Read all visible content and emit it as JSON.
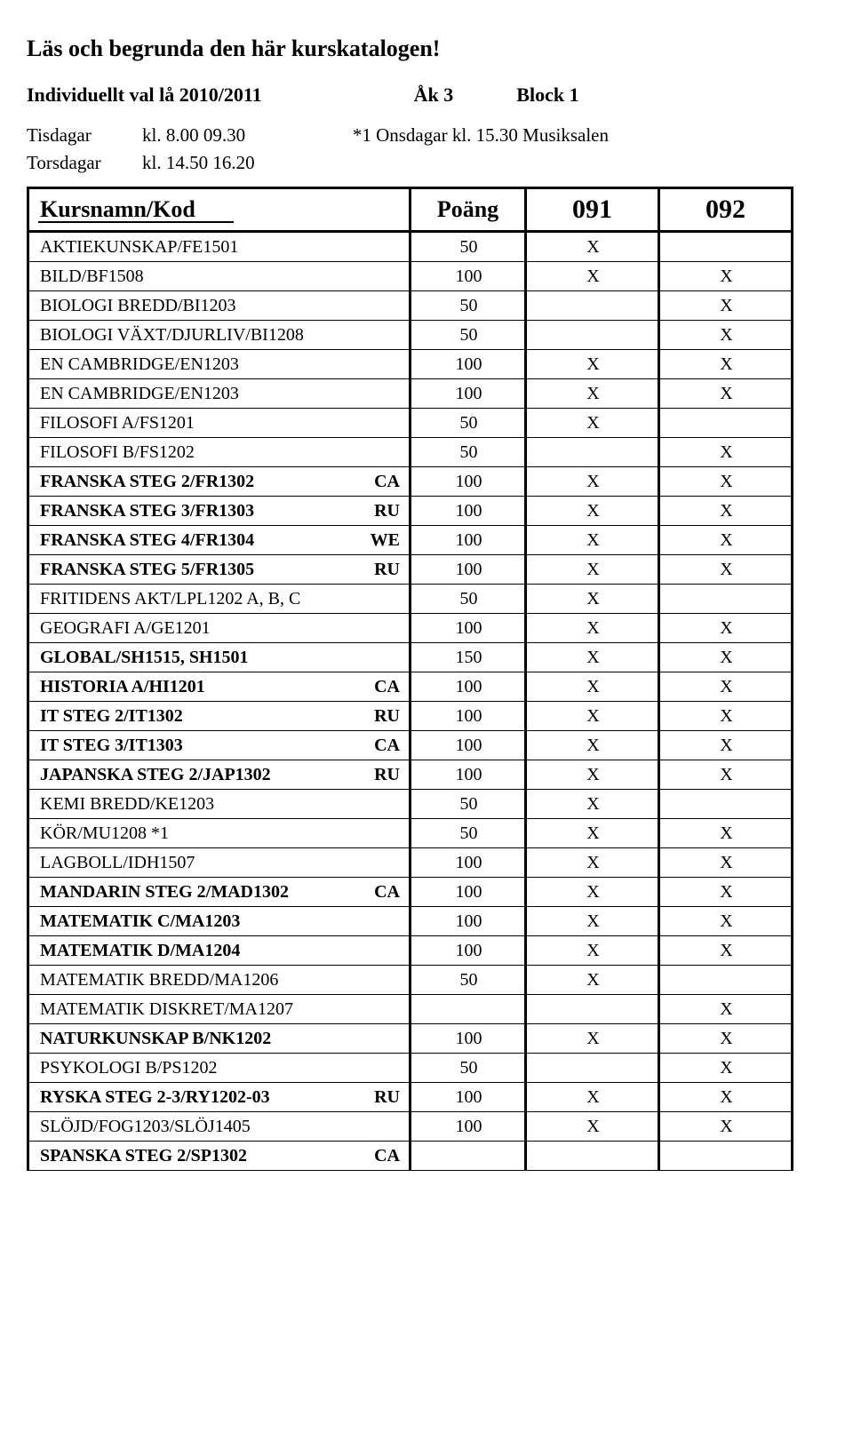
{
  "title": "Läs och begrunda den här kurskatalogen!",
  "subhead": {
    "a": "Individuellt val lå 2010/2011",
    "b": "Åk 3",
    "c": "Block 1"
  },
  "schedule": [
    {
      "day": "Tisdagar",
      "abbr": "kl.",
      "time": "8.00   09.30",
      "note": "*1 Onsdagar kl. 15.30 Musiksalen"
    },
    {
      "day": "Torsdagar",
      "abbr": "kl.",
      "time": "14.50   16.20",
      "note": ""
    }
  ],
  "columns": {
    "name": "Kursnamn/Kod",
    "points": "Poäng",
    "c1": "091",
    "c2": "092"
  },
  "rows": [
    {
      "label": "AKTIEKUNSKAP/FE1501",
      "suffix": "",
      "bold": false,
      "pts": "50",
      "m1": "X",
      "m2": ""
    },
    {
      "label": "BILD/BF1508",
      "suffix": "",
      "bold": false,
      "pts": "100",
      "m1": "X",
      "m2": "X"
    },
    {
      "label": "BIOLOGI BREDD/BI1203",
      "suffix": "",
      "bold": false,
      "pts": "50",
      "m1": "",
      "m2": "X"
    },
    {
      "label": "BIOLOGI VÄXT/DJURLIV/BI1208",
      "suffix": "",
      "bold": false,
      "pts": "50",
      "m1": "",
      "m2": "X"
    },
    {
      "label": "EN CAMBRIDGE/EN1203",
      "suffix": "",
      "bold": false,
      "pts": "100",
      "m1": "X",
      "m2": "X"
    },
    {
      "label": "EN CAMBRIDGE/EN1203",
      "suffix": "",
      "bold": false,
      "pts": "100",
      "m1": "X",
      "m2": "X"
    },
    {
      "label": "FILOSOFI A/FS1201",
      "suffix": "",
      "bold": false,
      "pts": "50",
      "m1": "X",
      "m2": ""
    },
    {
      "label": "FILOSOFI B/FS1202",
      "suffix": "",
      "bold": false,
      "pts": "50",
      "m1": "",
      "m2": "X"
    },
    {
      "label": "FRANSKA STEG 2/FR1302",
      "suffix": "CA",
      "bold": true,
      "pts": "100",
      "m1": "X",
      "m2": "X"
    },
    {
      "label": "FRANSKA STEG 3/FR1303",
      "suffix": "RU",
      "bold": true,
      "pts": "100",
      "m1": "X",
      "m2": "X"
    },
    {
      "label": "FRANSKA STEG 4/FR1304",
      "suffix": "WE",
      "bold": true,
      "pts": "100",
      "m1": "X",
      "m2": "X"
    },
    {
      "label": "FRANSKA STEG 5/FR1305",
      "suffix": "RU",
      "bold": true,
      "pts": "100",
      "m1": "X",
      "m2": "X"
    },
    {
      "label": "FRITIDENS AKT/LPL1202 A, B, C",
      "suffix": "",
      "bold": false,
      "pts": "50",
      "m1": "X",
      "m2": ""
    },
    {
      "label": "GEOGRAFI A/GE1201",
      "suffix": "",
      "bold": false,
      "pts": "100",
      "m1": "X",
      "m2": "X"
    },
    {
      "label": "GLOBAL/SH1515, SH1501",
      "suffix": "",
      "bold": true,
      "pts": "150",
      "m1": "X",
      "m2": "X"
    },
    {
      "label": "HISTORIA A/HI1201",
      "suffix": "CA",
      "bold": true,
      "pts": "100",
      "m1": "X",
      "m2": "X"
    },
    {
      "label": "IT STEG 2/IT1302",
      "suffix": "RU",
      "bold": true,
      "pts": "100",
      "m1": "X",
      "m2": "X"
    },
    {
      "label": "IT STEG 3/IT1303",
      "suffix": "CA",
      "bold": true,
      "pts": "100",
      "m1": "X",
      "m2": "X"
    },
    {
      "label": "JAPANSKA STEG 2/JAP1302",
      "suffix": "RU",
      "bold": true,
      "pts": "100",
      "m1": "X",
      "m2": "X"
    },
    {
      "label": "KEMI BREDD/KE1203",
      "suffix": "",
      "bold": false,
      "pts": "50",
      "m1": "X",
      "m2": ""
    },
    {
      "label": "KÖR/MU1208 *1",
      "suffix": "",
      "bold": false,
      "pts": "50",
      "m1": "X",
      "m2": "X"
    },
    {
      "label": "LAGBOLL/IDH1507",
      "suffix": "",
      "bold": false,
      "pts": "100",
      "m1": "X",
      "m2": "X"
    },
    {
      "label": "MANDARIN STEG 2/MAD1302",
      "suffix": "CA",
      "bold": true,
      "pts": "100",
      "m1": "X",
      "m2": "X"
    },
    {
      "label": "MATEMATIK C/MA1203",
      "suffix": "",
      "bold": true,
      "pts": "100",
      "m1": "X",
      "m2": "X"
    },
    {
      "label": "MATEMATIK D/MA1204",
      "suffix": "",
      "bold": true,
      "pts": "100",
      "m1": "X",
      "m2": "X"
    },
    {
      "label": "MATEMATIK BREDD/MA1206",
      "suffix": "",
      "bold": false,
      "pts": "50",
      "m1": "X",
      "m2": ""
    },
    {
      "label": "MATEMATIK DISKRET/MA1207",
      "suffix": "",
      "bold": false,
      "pts": "",
      "m1": "",
      "m2": "X"
    },
    {
      "label": "NATURKUNSKAP B/NK1202",
      "suffix": "",
      "bold": true,
      "pts": "100",
      "m1": "X",
      "m2": "X"
    },
    {
      "label": "PSYKOLOGI B/PS1202",
      "suffix": "",
      "bold": false,
      "pts": "50",
      "m1": "",
      "m2": "X"
    },
    {
      "label": "RYSKA STEG 2-3/RY1202-03",
      "suffix": "RU",
      "bold": true,
      "pts": "100",
      "m1": "X",
      "m2": "X"
    },
    {
      "label": "SLÖJD/FOG1203/SLÖJ1405",
      "suffix": "",
      "bold": false,
      "pts": "100",
      "m1": "X",
      "m2": "X"
    },
    {
      "label": "SPANSKA STEG 2/SP1302",
      "suffix": "CA",
      "bold": true,
      "pts": "",
      "m1": "",
      "m2": ""
    }
  ]
}
